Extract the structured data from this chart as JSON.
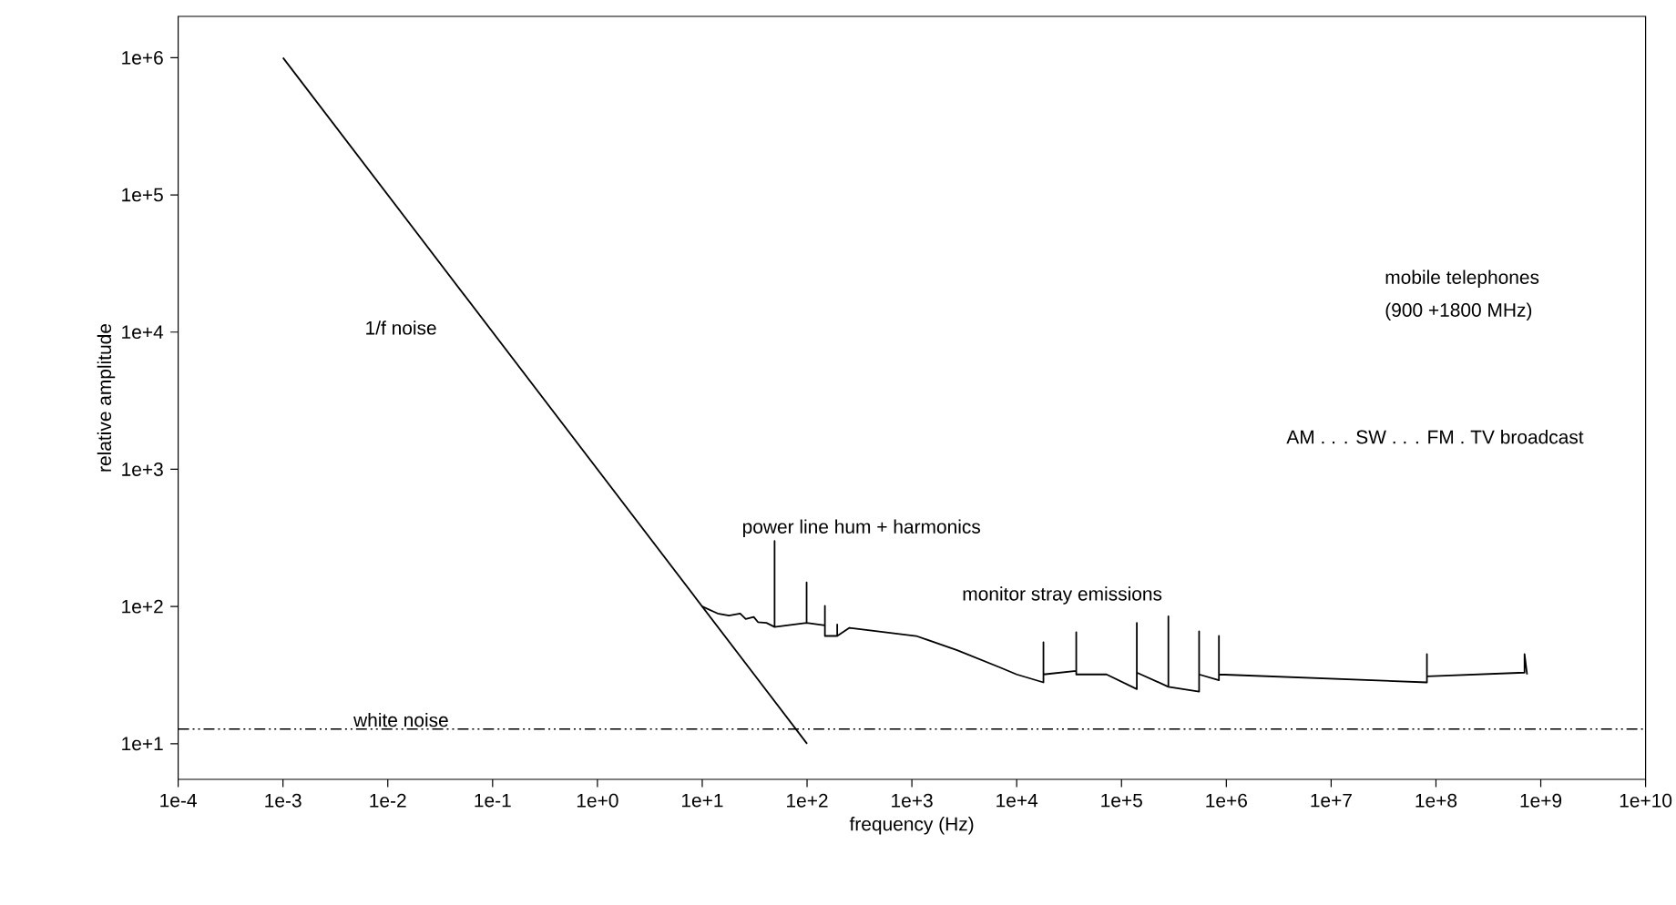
{
  "chart_data": {
    "type": "line",
    "xlabel": "frequency (Hz)",
    "ylabel": "relative amplitude",
    "log": "xy",
    "xlim": [
      0.0001,
      10000000000
    ],
    "ylim": [
      5.5,
      2000000
    ],
    "xticks": [
      {
        "value": 0.0001,
        "label": "1e-4"
      },
      {
        "value": 0.001,
        "label": "1e-3"
      },
      {
        "value": 0.01,
        "label": "1e-2"
      },
      {
        "value": 0.1,
        "label": "1e-1"
      },
      {
        "value": 1,
        "label": "1e+0"
      },
      {
        "value": 10,
        "label": "1e+1"
      },
      {
        "value": 100,
        "label": "1e+2"
      },
      {
        "value": 1000,
        "label": "1e+3"
      },
      {
        "value": 10000,
        "label": "1e+4"
      },
      {
        "value": 100000,
        "label": "1e+5"
      },
      {
        "value": 1000000,
        "label": "1e+6"
      },
      {
        "value": 10000000,
        "label": "1e+7"
      },
      {
        "value": 100000000,
        "label": "1e+8"
      },
      {
        "value": 1000000000,
        "label": "1e+9"
      },
      {
        "value": 10000000000,
        "label": "1e+10"
      }
    ],
    "yticks": [
      {
        "value": 10,
        "label": "1e+1"
      },
      {
        "value": 100,
        "label": "1e+2"
      },
      {
        "value": 1000,
        "label": "1e+3"
      },
      {
        "value": 10000,
        "label": "1e+4"
      },
      {
        "value": 100000,
        "label": "1e+5"
      },
      {
        "value": 1000000,
        "label": "1e+6"
      }
    ],
    "series": [
      {
        "color": "#000000",
        "x": [
          0.001,
          100
        ],
        "values": [
          1000000,
          10
        ]
      },
      {
        "color": "#000000",
        "x": [
          10,
          14,
          18,
          23,
          26,
          31,
          34,
          41,
          49,
          49,
          49,
          99,
          99,
          99,
          148,
          148,
          148,
          194,
          194,
          194,
          254,
          1100,
          2700,
          6900,
          10000,
          18000,
          18000,
          18000,
          37000,
          37000,
          37000,
          72000,
          140000,
          140000,
          140000,
          280000,
          280000,
          280000,
          550000,
          550000,
          550000,
          850000,
          850000,
          850000,
          82000000,
          82000000,
          82000000,
          700000000,
          700000000,
          740000000
        ],
        "values": [
          100,
          89,
          86,
          89,
          81,
          84,
          77,
          76,
          71,
          300,
          71,
          76,
          150,
          76,
          73,
          101,
          61,
          61,
          74,
          61,
          70,
          61,
          48,
          36,
          32,
          28,
          55,
          32,
          34,
          65,
          32,
          32,
          25,
          76,
          33,
          26,
          85,
          26,
          24,
          66,
          32,
          29,
          61,
          32,
          28,
          45,
          31,
          33,
          45,
          32
        ]
      }
    ],
    "ref_lines": [
      {
        "axis": "y",
        "value": 12.8,
        "label": "white noise",
        "color": "#000000",
        "line_style": "dashdotdotted"
      }
    ],
    "annotations": [
      "1/f noise",
      "power line hum + harmonics",
      "monitor stray emissions",
      "AM . . . SW . . . FM . TV broadcast",
      "mobile telephones",
      "(900 +1800 MHz)"
    ]
  }
}
